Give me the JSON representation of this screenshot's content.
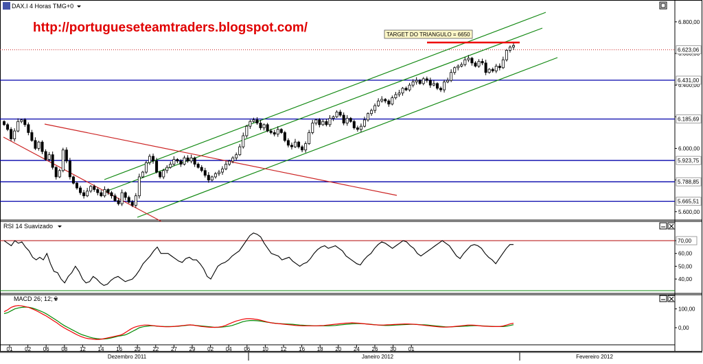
{
  "window": {
    "title": "DAX.I 4 Horas TMG+0",
    "icon": "chart-icon",
    "dropdown_icon": "triangle-down-icon"
  },
  "watermark": "http://portugueseteamtraders.blogspot.com/",
  "target_label": "TARGET DO TRIANGULO = 6650",
  "colors": {
    "candle_up": "#ffffff",
    "candle_down": "#000000",
    "hline": "#0000aa",
    "channel": "#118811",
    "triangle": "#cc2222",
    "target": "#ee0000",
    "price_label": "#cc2222",
    "macd": "#008800",
    "macd_signal": "#ee0000"
  },
  "chart_data": [
    {
      "type": "candlestick",
      "title": "DAX.I 4 Horas TMG+0",
      "x_tick_labels": [
        "01",
        "02",
        "06",
        "08",
        "12",
        "14",
        "16",
        "20",
        "22",
        "27",
        "29",
        "02",
        "04",
        "06",
        "10",
        "12",
        "16",
        "18",
        "20",
        "24",
        "26",
        "30",
        "01"
      ],
      "x_month_labels": [
        "Dezembro 2011",
        "Janeiro 2012",
        "Fevereiro 2012"
      ],
      "y_tick_labels": [
        "6.800,00",
        "6.600,00",
        "6.400,00",
        "6.200,00",
        "6.000,00",
        "5.800,00",
        "5.600,00"
      ],
      "ylim": [
        5560,
        6860
      ],
      "price_levels": [
        {
          "value": 6623.06,
          "label": "6.623,06",
          "style": "dotted"
        },
        {
          "value": 6431.0,
          "label": "6.431,00",
          "style": "solid"
        },
        {
          "value": 6185.69,
          "label": "6.185,69",
          "style": "solid"
        },
        {
          "value": 5923.75,
          "label": "5.923,75",
          "style": "solid"
        },
        {
          "value": 5788.85,
          "label": "5.788,85",
          "style": "solid"
        },
        {
          "value": 5665.51,
          "label": "5.665,51",
          "style": "solid"
        }
      ],
      "closes": [
        6150,
        6120,
        6060,
        6110,
        6170,
        6180,
        6150,
        6100,
        6050,
        6000,
        6040,
        5980,
        5930,
        5960,
        5880,
        5820,
        5860,
        5990,
        5920,
        5820,
        5780,
        5750,
        5720,
        5700,
        5730,
        5760,
        5740,
        5720,
        5700,
        5740,
        5720,
        5700,
        5670,
        5650,
        5720,
        5690,
        5660,
        5640,
        5700,
        5820,
        5850,
        5910,
        5950,
        5920,
        5850,
        5820,
        5860,
        5880,
        5900,
        5930,
        5920,
        5900,
        5940,
        5920,
        5940,
        5900,
        5880,
        5860,
        5830,
        5800,
        5820,
        5840,
        5850,
        5870,
        5900,
        5920,
        5940,
        5960,
        6010,
        6080,
        6140,
        6170,
        6180,
        6160,
        6130,
        6150,
        6110,
        6100,
        6090,
        6120,
        6100,
        6050,
        6020,
        6010,
        6040,
        6010,
        5990,
        6030,
        6100,
        6160,
        6180,
        6150,
        6170,
        6150,
        6190,
        6200,
        6230,
        6210,
        6160,
        6190,
        6170,
        6130,
        6120,
        6140,
        6180,
        6220,
        6240,
        6270,
        6300,
        6310,
        6300,
        6280,
        6320,
        6340,
        6350,
        6380,
        6370,
        6400,
        6420,
        6430,
        6410,
        6440,
        6430,
        6400,
        6410,
        6380,
        6370,
        6420,
        6430,
        6480,
        6510,
        6520,
        6530,
        6560,
        6570,
        6540,
        6520,
        6550,
        6540,
        6480,
        6500,
        6490,
        6520,
        6510,
        6560,
        6620,
        6640,
        6650
      ]
    },
    {
      "type": "line",
      "title": "RSI 14 Suavizado",
      "y_tick_labels": [
        "70,00",
        "60,00",
        "50,00",
        "40,00"
      ],
      "ylim": [
        32,
        77
      ],
      "level": {
        "value": 70,
        "label": "70,00"
      },
      "values": [
        70,
        68,
        66,
        70,
        68,
        69,
        65,
        62,
        57,
        55,
        57,
        55,
        60,
        52,
        46,
        45,
        40,
        37,
        42,
        45,
        50,
        46,
        40,
        37,
        38,
        42,
        40,
        37,
        35,
        36,
        39,
        41,
        42,
        40,
        38,
        39,
        40,
        43,
        47,
        52,
        55,
        58,
        62,
        65,
        60,
        60,
        60,
        58,
        56,
        54,
        53,
        56,
        57,
        55,
        55,
        52,
        48,
        42,
        40,
        45,
        50,
        52,
        53,
        55,
        58,
        60,
        62,
        66,
        70,
        74,
        76,
        75,
        73,
        68,
        64,
        60,
        59,
        58,
        55,
        56,
        57,
        54,
        52,
        50,
        52,
        53,
        56,
        60,
        63,
        65,
        66,
        64,
        65,
        66,
        64,
        62,
        58,
        56,
        54,
        52,
        51,
        55,
        58,
        60,
        64,
        67,
        69,
        68,
        66,
        64,
        66,
        68,
        70,
        69,
        66,
        64,
        60,
        58,
        60,
        62,
        64,
        66,
        68,
        70,
        68,
        66,
        62,
        58,
        56,
        60,
        63,
        66,
        67,
        66,
        64,
        60,
        57,
        55,
        52,
        56,
        60,
        64,
        67,
        67
      ]
    },
    {
      "type": "line",
      "title": "MACD 26; 12; 9",
      "y_tick_labels": [
        "100,00",
        "0,00"
      ],
      "ylim": [
        -80,
        135
      ],
      "series": [
        {
          "values": [
            75,
            80,
            90,
            100,
            105,
            108,
            110,
            108,
            104,
            98,
            90,
            82,
            72,
            60,
            48,
            36,
            22,
            10,
            0,
            -10,
            -20,
            -30,
            -38,
            -44,
            -50,
            -55,
            -58,
            -60,
            -60,
            -58,
            -55,
            -50,
            -45,
            -42,
            -38,
            -30,
            -20,
            -10,
            0,
            5,
            8,
            10,
            10,
            8,
            7,
            6,
            6,
            6,
            7,
            8,
            10,
            12,
            14,
            14,
            12,
            10,
            8,
            6,
            4,
            2,
            2,
            3,
            5,
            8,
            12,
            18,
            25,
            32,
            36,
            38,
            38,
            37,
            35,
            32,
            29,
            26,
            24,
            22,
            21,
            20,
            19,
            18,
            16,
            14,
            13,
            12,
            11,
            10,
            10,
            10,
            10,
            10,
            11,
            12,
            14,
            16,
            18,
            20,
            21,
            22,
            22,
            21,
            20,
            18,
            16,
            14,
            13,
            12,
            12,
            13,
            14,
            15,
            16,
            17,
            18,
            18,
            17,
            16,
            15,
            14,
            12,
            10,
            8,
            6,
            4,
            4,
            5,
            6,
            7,
            8,
            9,
            10,
            11,
            11,
            10,
            9,
            8,
            7,
            6,
            6,
            6,
            8,
            12,
            16
          ]
        },
        {
          "values": [
            85,
            95,
            108,
            115,
            118,
            116,
            112,
            108,
            100,
            92,
            82,
            72,
            62,
            50,
            38,
            26,
            12,
            0,
            -10,
            -20,
            -30,
            -40,
            -48,
            -54,
            -58,
            -60,
            -62,
            -62,
            -60,
            -56,
            -52,
            -48,
            -44,
            -40,
            -32,
            -20,
            -8,
            2,
            8,
            12,
            14,
            14,
            12,
            10,
            8,
            6,
            5,
            5,
            6,
            8,
            10,
            12,
            14,
            15,
            13,
            10,
            7,
            5,
            3,
            2,
            2,
            3,
            6,
            12,
            20,
            28,
            35,
            40,
            45,
            48,
            48,
            46,
            44,
            40,
            35,
            30,
            26,
            23,
            22,
            20,
            18,
            16,
            14,
            12,
            11,
            10,
            10,
            10,
            10,
            10,
            11,
            12,
            14,
            16,
            18,
            20,
            22,
            24,
            25,
            26,
            25,
            24,
            22,
            20,
            18,
            16,
            15,
            14,
            14,
            15,
            16,
            17,
            18,
            19,
            20,
            20,
            19,
            18,
            16,
            14,
            12,
            10,
            8,
            6,
            4,
            3,
            3,
            4,
            6,
            8,
            10,
            12,
            14,
            14,
            13,
            11,
            9,
            8,
            7,
            6,
            6,
            6,
            9,
            14,
            20,
            24
          ]
        }
      ]
    }
  ]
}
